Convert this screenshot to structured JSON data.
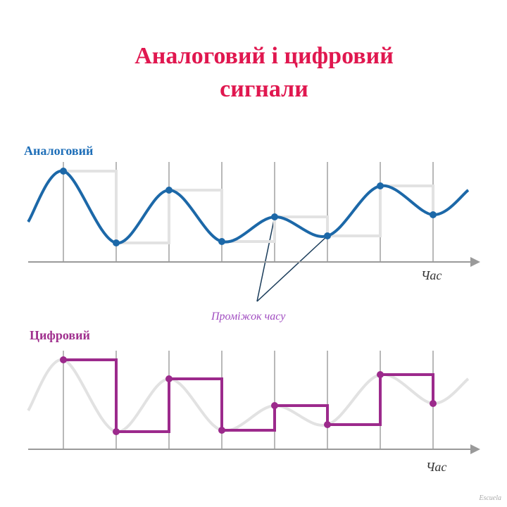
{
  "header": {
    "title_lines": [
      "Аналоговий і цифровий",
      "сигнали"
    ]
  },
  "analog": {
    "label": "Аналоговий",
    "axis_label": "Час",
    "annotation": "Проміжок часу"
  },
  "digital": {
    "label": "Цифровий",
    "axis_label": "Час"
  },
  "footer": {
    "credit": "Escuela"
  }
}
